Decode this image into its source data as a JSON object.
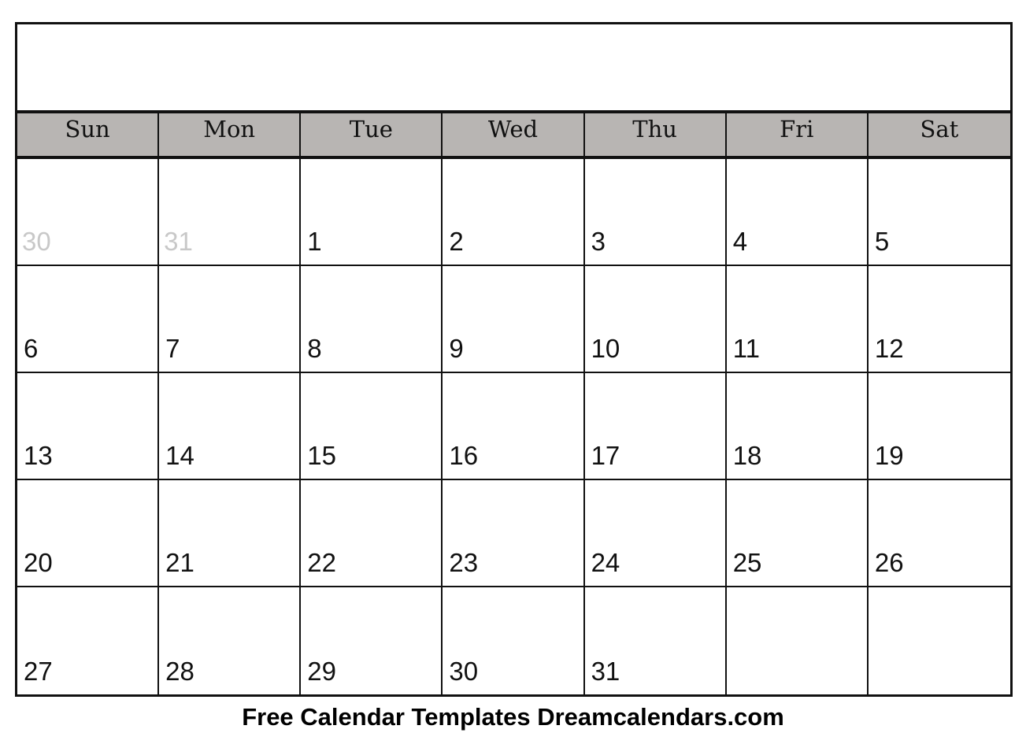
{
  "calendar": {
    "title": "",
    "weekdays": [
      "Sun",
      "Mon",
      "Tue",
      "Wed",
      "Thu",
      "Fri",
      "Sat"
    ],
    "days": [
      {
        "label": "30",
        "other_month": true
      },
      {
        "label": "31",
        "other_month": true
      },
      {
        "label": "1"
      },
      {
        "label": "2"
      },
      {
        "label": "3"
      },
      {
        "label": "4"
      },
      {
        "label": "5"
      },
      {
        "label": "6"
      },
      {
        "label": "7"
      },
      {
        "label": "8"
      },
      {
        "label": "9"
      },
      {
        "label": "10"
      },
      {
        "label": "11"
      },
      {
        "label": "12"
      },
      {
        "label": "13"
      },
      {
        "label": "14"
      },
      {
        "label": "15"
      },
      {
        "label": "16"
      },
      {
        "label": "17"
      },
      {
        "label": "18"
      },
      {
        "label": "19"
      },
      {
        "label": "20"
      },
      {
        "label": "21"
      },
      {
        "label": "22"
      },
      {
        "label": "23"
      },
      {
        "label": "24"
      },
      {
        "label": "25"
      },
      {
        "label": "26"
      },
      {
        "label": "27"
      },
      {
        "label": "28"
      },
      {
        "label": "29"
      },
      {
        "label": "30"
      },
      {
        "label": "31"
      },
      {
        "label": ""
      },
      {
        "label": ""
      }
    ],
    "header_color": "#b8b5b3",
    "other_month_color": "#c8c8c8"
  },
  "footer": {
    "text": "Free Calendar Templates Dreamcalendars.com"
  }
}
